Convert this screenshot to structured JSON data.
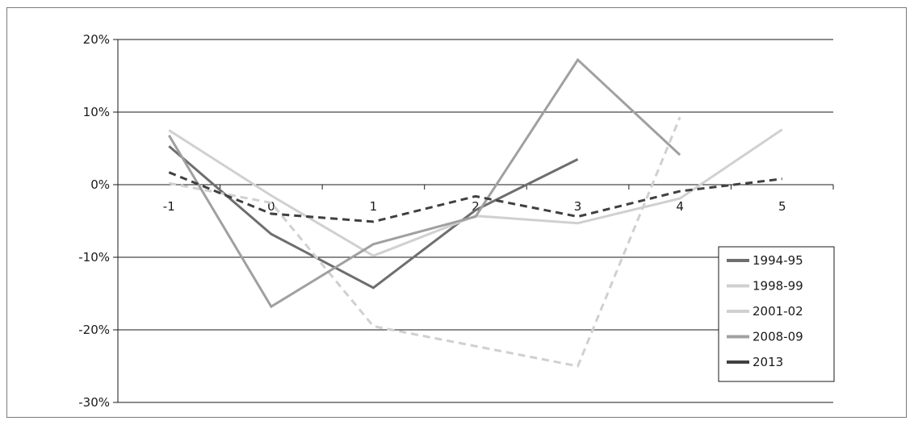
{
  "chart_data": {
    "type": "line",
    "x": [
      -1,
      0,
      1,
      2,
      3,
      4,
      5
    ],
    "x_tick_labels": [
      "-1",
      "0",
      "1",
      "2",
      "3",
      "4",
      "5"
    ],
    "ylim": [
      -30,
      20
    ],
    "y_ticks": [
      20,
      10,
      0,
      -10,
      -20,
      -30
    ],
    "y_tick_labels": [
      "20%",
      "10%",
      "0%",
      "-10%",
      "-20%",
      "-30%"
    ],
    "grid": "horizontal",
    "legend_position": "bottom-right",
    "series": [
      {
        "name": "1994-95",
        "color": "#6e6e6e",
        "dash": "solid",
        "points": [
          [
            -1,
            5.3
          ],
          [
            0,
            -6.8
          ],
          [
            1,
            -14.2
          ],
          [
            2,
            -3.5
          ],
          [
            3,
            3.5
          ]
        ]
      },
      {
        "name": "1998-99",
        "color": "#d0d0d0",
        "dash": "solid",
        "points": [
          [
            -1,
            7.5
          ],
          [
            0,
            -1.5
          ],
          [
            1,
            -9.8
          ],
          [
            2,
            -4.3
          ],
          [
            3,
            -5.3
          ],
          [
            4,
            -1.9
          ],
          [
            5,
            7.6
          ]
        ]
      },
      {
        "name": "2001-02",
        "color": "#d0d0d0",
        "dash": "dashed",
        "points": [
          [
            -1,
            0.2
          ],
          [
            0,
            -2.5
          ],
          [
            1,
            -19.5
          ],
          [
            3,
            -25.0
          ],
          [
            4,
            9.3
          ]
        ]
      },
      {
        "name": "2008-09",
        "color": "#a0a0a0",
        "dash": "solid",
        "points": [
          [
            -1,
            6.8
          ],
          [
            0,
            -16.8
          ],
          [
            1,
            -8.2
          ],
          [
            2,
            -4.4
          ],
          [
            3,
            17.2
          ],
          [
            4,
            4.1
          ]
        ]
      },
      {
        "name": "2013",
        "color": "#404040",
        "dash": "dashed",
        "points": [
          [
            -1,
            1.7
          ],
          [
            0,
            -4.0
          ],
          [
            1,
            -5.1
          ],
          [
            2,
            -1.6
          ],
          [
            3,
            -4.4
          ],
          [
            4,
            -0.9
          ],
          [
            5,
            0.8
          ]
        ]
      }
    ]
  }
}
